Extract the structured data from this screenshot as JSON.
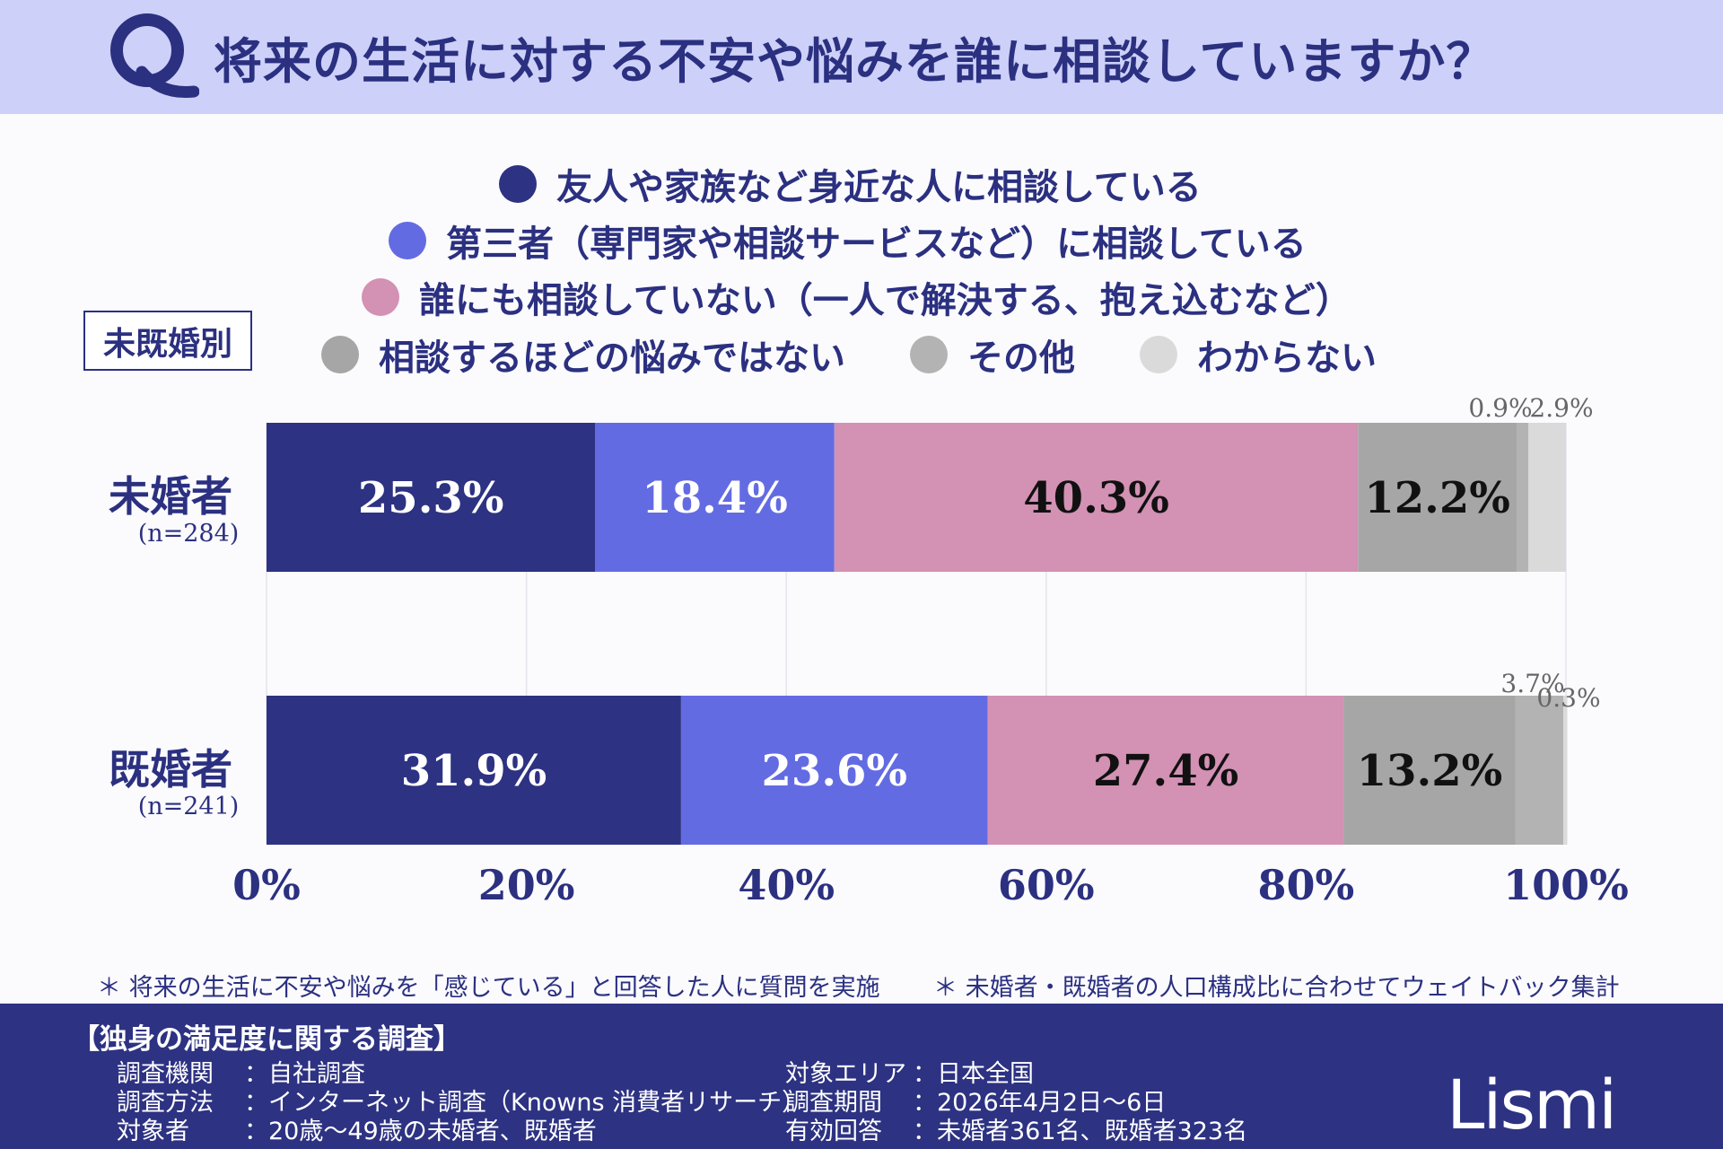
{
  "header": {
    "title": "将来の生活に対する不安や悩みを誰に相談していますか？",
    "q_letter": "Q"
  },
  "group_label": "未既婚別",
  "legend": [
    {
      "label": "友人や家族など身近な人に相談している",
      "color": "#2d3282"
    },
    {
      "label": "第三者（専門家や相談サービスなど）に相談している",
      "color": "#636be3"
    },
    {
      "label": "誰にも相談していない（一人で解決する、抱え込むなど）",
      "color": "#d391b4"
    },
    {
      "label": "相談するほどの悩みではない",
      "color": "#a6a6a6"
    },
    {
      "label": "その他",
      "color": "#b3b3b3"
    },
    {
      "label": "わからない",
      "color": "#dadada"
    }
  ],
  "chart_data": {
    "type": "bar",
    "orientation": "horizontal",
    "stacked": true,
    "categories": [
      "未婚者",
      "既婚者"
    ],
    "category_notes": [
      "(n=284)",
      "(n=241)"
    ],
    "series": [
      {
        "name": "友人や家族など身近な人に相談している",
        "values": [
          25.3,
          31.9
        ]
      },
      {
        "name": "第三者（専門家や相談サービスなど）に相談している",
        "values": [
          18.4,
          23.6
        ]
      },
      {
        "name": "誰にも相談していない（一人で解決する、抱え込むなど）",
        "values": [
          40.3,
          27.4
        ]
      },
      {
        "name": "相談するほどの悩みではない",
        "values": [
          12.2,
          13.2
        ]
      },
      {
        "name": "その他",
        "values": [
          0.9,
          3.7
        ]
      },
      {
        "name": "わからない",
        "values": [
          2.9,
          0.3
        ]
      }
    ],
    "value_labels": [
      [
        "25.3%",
        "18.4%",
        "40.3%",
        "12.2%",
        "0.9%",
        "2.9%"
      ],
      [
        "31.9%",
        "23.6%",
        "27.4%",
        "13.2%",
        "3.7%",
        "0.3%"
      ]
    ],
    "xlim": [
      0,
      100
    ],
    "ticks": [
      "0%",
      "20%",
      "40%",
      "60%",
      "80%",
      "100%"
    ],
    "grid": true,
    "legend_position": "top"
  },
  "notes": [
    "＊ 将来の生活に不安や悩みを「感じている」と回答した人に質問を実施",
    "＊ 未婚者・既婚者の人口構成比に合わせてウェイトバック集計"
  ],
  "footer": {
    "survey_title": "【独身の満足度に関する調査】",
    "rows_left": [
      {
        "key": "調査機関",
        "value": "：自社調査"
      },
      {
        "key": "調査方法",
        "value": "：インターネット調査（Knowns 消費者リサーチ）"
      },
      {
        "key": "対象者",
        "value": "：20歳～49歳の未婚者、既婚者"
      }
    ],
    "rows_right": [
      {
        "key": "対象エリア",
        "value": "：日本全国"
      },
      {
        "key": "調査期間",
        "value": "：2026年4月2日～6日"
      },
      {
        "key": "有効回答",
        "value": "：未婚者361名、既婚者323名"
      }
    ],
    "logo": "Lismi"
  }
}
